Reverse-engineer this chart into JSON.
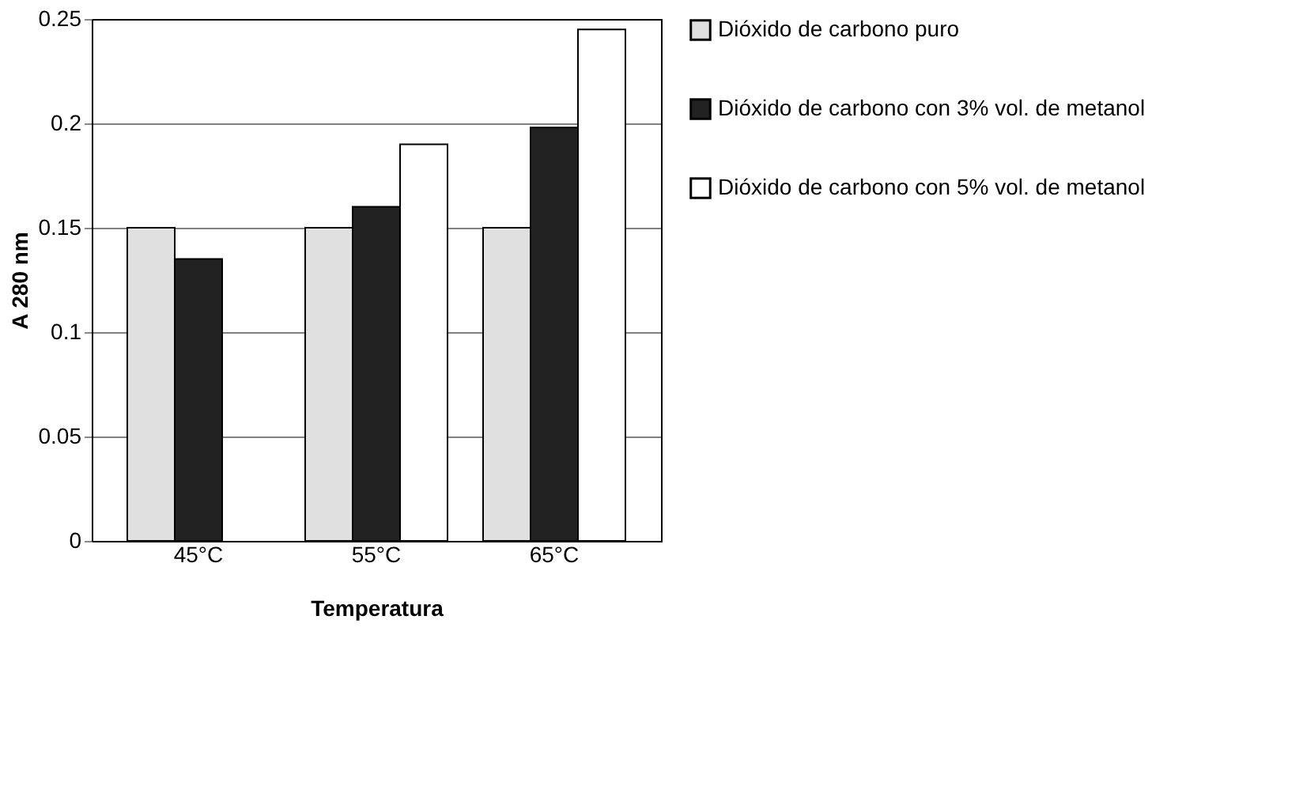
{
  "chart_data": {
    "type": "bar",
    "xlabel": "Temperatura",
    "ylabel": "A 280 nm",
    "categories": [
      "45°C",
      "55°C",
      "65°C"
    ],
    "series": [
      {
        "name": "Dióxido de carbono puro",
        "color": "#e0e0e0",
        "values": [
          0.15,
          0.15,
          0.15
        ]
      },
      {
        "name": "Dióxido de carbono con 3% vol. de metanol",
        "color": "#222222",
        "values": [
          0.135,
          0.16,
          0.198
        ]
      },
      {
        "name": "Dióxido de carbono con 5% vol. de metanol",
        "color": "#ffffff",
        "values": [
          null,
          0.19,
          0.245
        ]
      }
    ],
    "ylim": [
      0,
      0.25
    ],
    "yticks": [
      0,
      0.05,
      0.1,
      0.15,
      0.2,
      0.25
    ],
    "grid": "y",
    "legend": "right"
  }
}
